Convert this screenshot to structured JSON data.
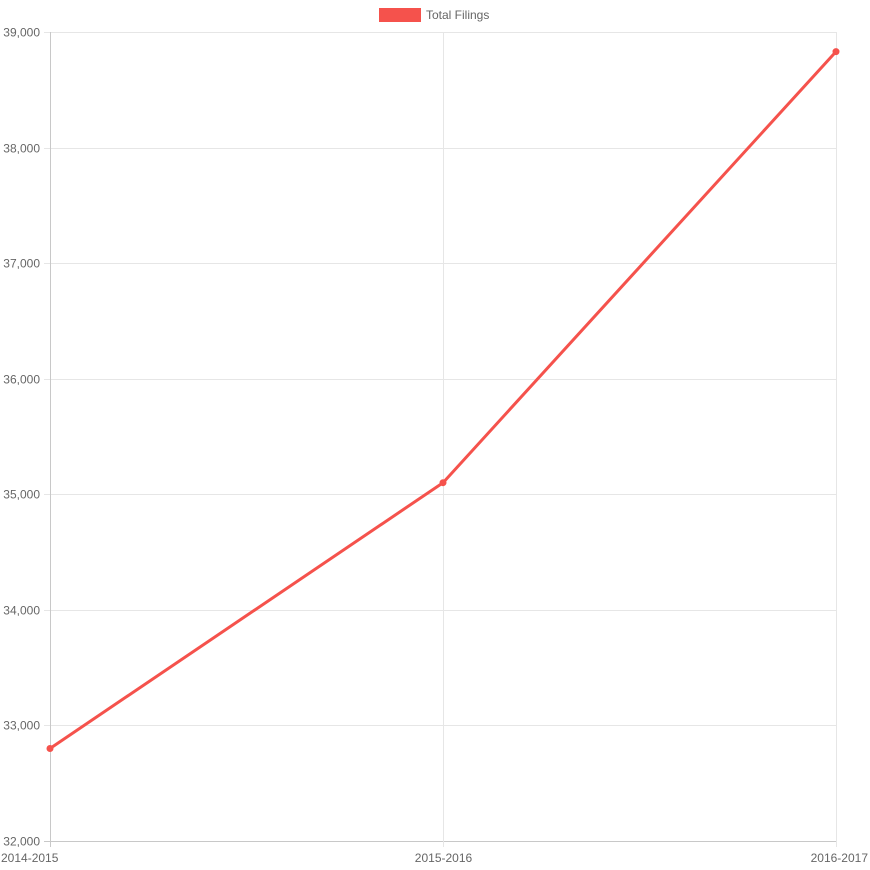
{
  "chart_data": {
    "type": "line",
    "title": "",
    "xlabel": "",
    "ylabel": "",
    "categories": [
      "2014-2015",
      "2015-2016",
      "2016-2017"
    ],
    "series": [
      {
        "name": "Total Filings",
        "values": [
          32800,
          35100,
          38830
        ],
        "color": "#f5524c"
      }
    ],
    "ylim": [
      32000,
      39000
    ],
    "yticks": [
      32000,
      33000,
      34000,
      35000,
      36000,
      37000,
      38000,
      39000
    ],
    "ytick_labels": [
      "32,000",
      "33,000",
      "34,000",
      "35,000",
      "36,000",
      "37,000",
      "38,000",
      "39,000"
    ],
    "grid": true,
    "legend_position": "top"
  },
  "colors": {
    "grid": "#e6e6e6",
    "axis": "#c8c8c8",
    "tick_text": "#666666"
  }
}
